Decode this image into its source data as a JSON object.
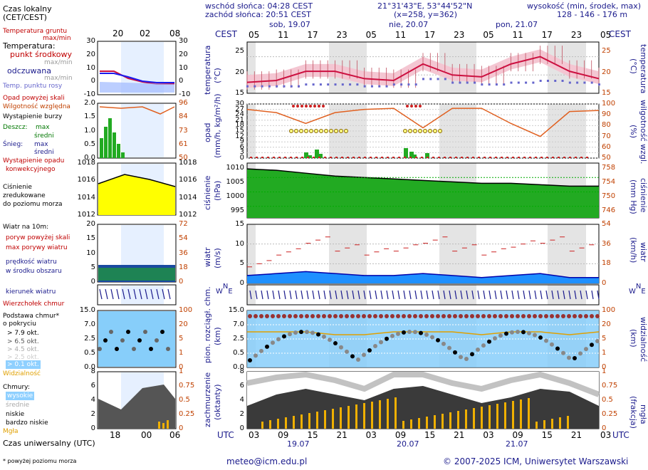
{
  "header": {
    "sunrise": "wschód słońca: 04:28 CEST",
    "sunset": "zachód słońca: 20:51 CEST",
    "coords": "21°31'43\"E, 53°44'52\"N",
    "grid": "(x=258, y=362)",
    "height_label": "wysokość (min, środek, max)",
    "height_values": "128 - 146 - 176 m"
  },
  "left_legend": {
    "local_time": "Czas lokalny",
    "local_time2": "(CET/CEST)",
    "ground_temp": "Temperatura gruntu",
    "maxmin": "max/min",
    "temperature": "Temperatura:",
    "mid_point": "punkt środkowy",
    "maxmin2": "max/min",
    "heated": "odczuwana",
    "maxmin3": "max/min",
    "dew": "Temp. punktu rosy",
    "precip_above": "Opad powyżej skali",
    "rh": "Wilgotność względna",
    "storm": "Wystąpienie burzy",
    "rain": "Deszcz:",
    "rain_max": "max",
    "rain_mid": "średni",
    "snow": "Śnieg:",
    "snow_max": "max",
    "snow_mid": "średni",
    "precip_occurrence": "Wystąpienie opadu",
    "convective": "konwekcyjnego",
    "pressure": "Ciśnienie",
    "reduced": "zredukowane",
    "sealevel": "do poziomu morza",
    "wind10": "Wiatr na 10m:",
    "gust_above": "poryw powyżej skali",
    "max_gust": "max porywy wiatru",
    "wind_speed": "prędkość wiatru",
    "area_mid": "w środku obszaru",
    "wind_dir": "kierunek wiatru",
    "cloud_top": "Wierzchołek chmur",
    "cloud_base": "Podstawa chmur*",
    "coverage": "o pokryciu",
    "okt79": "> 7.9 okt.",
    "okt65": "> 6.5 okt.",
    "okt45": "> 4.5 okt.",
    "okt25": "> 2.5 okt.",
    "okt01": "> 0.1 okt.",
    "visibility": "Widzialność",
    "clouds": "Chmury:",
    "high": "wysokie",
    "mid": "średnie",
    "low": "niskie",
    "very_low": "bardzo niskie",
    "fog": "Mgła",
    "utc_time": "Czas uniwersalny (UTC)",
    "footnote": "* powyżej poziomu morza"
  },
  "mini_times": {
    "top": [
      "20",
      "02",
      "08"
    ],
    "bottom": [
      "18",
      "00",
      "06"
    ]
  },
  "main_axis": {
    "cest": "CEST",
    "utc": "UTC",
    "days_top": [
      "sob, 19.07",
      "nie, 20.07",
      "pon, 21.07"
    ],
    "hours_top": [
      "05",
      "11",
      "17",
      "23",
      "05",
      "11",
      "17",
      "23",
      "05",
      "11",
      "17",
      "23",
      "05"
    ],
    "hours_bottom": [
      "03",
      "09",
      "15",
      "21",
      "03",
      "09",
      "15",
      "21",
      "03",
      "09",
      "15",
      "21",
      "03"
    ],
    "dates_bottom": [
      "19.07",
      "20.07",
      "21.07"
    ]
  },
  "panel_labels": {
    "temp_left": "temperatura",
    "temp_unit": "(°C)",
    "precip_left": "opad",
    "precip_unit": "(mm/h, kg/m²/h)",
    "rh_right": "wilgotność wzgl.",
    "rh_unit": "(%)",
    "pres_left": "ciśnienie",
    "pres_unit": "(hPa)",
    "pres_right": "ciśnienie",
    "pres_unit_r": "(mm Hg)",
    "wind_left": "wiatr",
    "wind_unit": "(m/s)",
    "wind_right": "wiatr",
    "wind_unit_r": "(km/h)",
    "cloud_left": "pion. rozciągł. chm.",
    "cloud_unit": "(km)",
    "vis_right": "widzialność",
    "vis_unit": "(km)",
    "cover_left": "zachmurzenie",
    "cover_unit": "(oktanty)",
    "fog_right": "mgła",
    "fog_unit": "(frakcja)"
  },
  "ticks": {
    "temp_l": [
      "25",
      "20",
      "15"
    ],
    "temp_r": [
      "25",
      "20",
      "15"
    ],
    "precip_l": [
      "30",
      "27",
      "24",
      "21",
      "18",
      "15",
      "12",
      "9",
      "6",
      "3",
      "0"
    ],
    "rh_r": [
      "100",
      "90",
      "80",
      "70",
      "60",
      "50"
    ],
    "pres_l": [
      "1010",
      "1005",
      "1000",
      "995"
    ],
    "pres_r": [
      "758",
      "754",
      "750",
      "746"
    ],
    "wind_l": [
      "15",
      "10",
      "5",
      "0"
    ],
    "wind_r": [
      "54",
      "36",
      "18",
      "0"
    ],
    "cloud_l": [
      "15.0",
      "7.0",
      "2.5",
      "0.5",
      "0.0"
    ],
    "vis_r": [
      "100",
      "20",
      "5",
      "1",
      "0"
    ],
    "cover_l": [
      "8",
      "6",
      "4",
      "2",
      "0"
    ],
    "fog_r": [
      "1",
      "0.75",
      "0.5",
      "0.25",
      "0"
    ]
  },
  "mini_ticks": {
    "temp_l": [
      "30",
      "20",
      "10",
      "0",
      "-10"
    ],
    "temp_r": [
      "30",
      "20",
      "10",
      "0",
      "-10"
    ],
    "precip_l": [
      "2.0",
      "1.5",
      "1.0",
      "0.5",
      "0.0"
    ],
    "rh_r": [
      "96",
      "84",
      "73",
      "61",
      "50"
    ],
    "pres_l": [
      "1018",
      "1016",
      "1014",
      "1012"
    ],
    "pres_r": [
      "1018",
      "1016",
      "1014",
      "1012"
    ],
    "wind_l": [
      "20",
      "15",
      "10",
      "5",
      "0"
    ],
    "wind_r": [
      "72",
      "54",
      "36",
      "18",
      "0"
    ],
    "cloud_l": [
      "15.0",
      "7.0",
      "2.5",
      "0.5",
      "0.0"
    ],
    "vis_r": [
      "100",
      "20",
      "5",
      "1",
      "0"
    ],
    "cover_l": [
      "8",
      "6",
      "4",
      "2",
      "0"
    ],
    "fog_r": [
      "1",
      "0.75",
      "0.5",
      "0.25",
      "0"
    ]
  },
  "footer": {
    "email": "meteo@icm.edu.pl",
    "copyright": "© 2007-2025 ICM, Uniwersytet Warszawski"
  },
  "colors": {
    "temp_line": "#cc1040",
    "dew": "#6666cc",
    "rh_line": "#e06020",
    "rain_bar": "#22aa22",
    "pressure_fill": "#22aa22",
    "wind_fill": "#1e90ff",
    "cloud_bg": "#87cefa",
    "night_shade": "#e6e6e6"
  },
  "chart_data": [
    {
      "type": "line",
      "title": "temperatura",
      "ylabel": "(°C)",
      "ylim": [
        15,
        29
      ],
      "x": [
        "19.07 03",
        "19.07 09",
        "19.07 15",
        "19.07 21",
        "20.07 03",
        "20.07 09",
        "20.07 15",
        "20.07 21",
        "21.07 03",
        "21.07 09",
        "21.07 15",
        "21.07 21",
        "22.07 03"
      ],
      "series": [
        {
          "name": "punkt środkowy",
          "values": [
            18,
            18.5,
            21,
            21,
            19,
            18.5,
            23,
            20,
            19.5,
            23,
            25,
            21,
            19
          ]
        },
        {
          "name": "Temp. punktu rosy",
          "values": [
            17,
            17,
            17.5,
            17.5,
            17,
            17.5,
            19,
            18,
            17.5,
            18,
            18.5,
            18,
            17.5
          ]
        }
      ]
    },
    {
      "type": "line",
      "title": "Wilgotność względna",
      "ylabel": "(%)",
      "ylim": [
        50,
        100
      ],
      "x": [
        "19.07 03",
        "19.07 09",
        "19.07 15",
        "19.07 21",
        "20.07 03",
        "20.07 09",
        "20.07 15",
        "20.07 21",
        "21.07 03",
        "21.07 09",
        "21.07 15",
        "21.07 21",
        "22.07 03"
      ],
      "series": [
        {
          "name": "Wilgotność względna",
          "values": [
            95,
            92,
            82,
            92,
            95,
            96,
            78,
            96,
            96,
            82,
            70,
            93,
            94
          ]
        }
      ]
    },
    {
      "type": "area",
      "title": "ciśnienie",
      "ylabel": "(hPa)",
      "ylim": [
        991,
        1010
      ],
      "x": [
        "19.07 03",
        "19.07 09",
        "19.07 15",
        "19.07 21",
        "20.07 03",
        "20.07 09",
        "20.07 15",
        "20.07 21",
        "21.07 03",
        "21.07 09",
        "21.07 15",
        "21.07 21",
        "22.07 03"
      ],
      "series": [
        {
          "name": "Ciśnienie",
          "values": [
            1008,
            1007.5,
            1006.5,
            1005.5,
            1005,
            1004.5,
            1004,
            1003.5,
            1003,
            1003,
            1002.5,
            1002,
            1002
          ]
        }
      ]
    },
    {
      "type": "area",
      "title": "wiatr",
      "ylabel": "(m/s)",
      "ylim": [
        0,
        15
      ],
      "x": [
        "19.07 03",
        "19.07 09",
        "19.07 15",
        "19.07 21",
        "20.07 03",
        "20.07 09",
        "20.07 15",
        "20.07 21",
        "21.07 03",
        "21.07 09",
        "21.07 15",
        "21.07 21",
        "22.07 03"
      ],
      "series": [
        {
          "name": "prędkość wiatru",
          "values": [
            2,
            2.5,
            3,
            2.5,
            2,
            2,
            2.5,
            2,
            1.5,
            2,
            2.5,
            1.5,
            1.5
          ]
        },
        {
          "name": "max porywy wiatru",
          "values": [
            5,
            8,
            11,
            9,
            8,
            9,
            11,
            9,
            8,
            10,
            11,
            9,
            7
          ]
        }
      ]
    }
  ]
}
